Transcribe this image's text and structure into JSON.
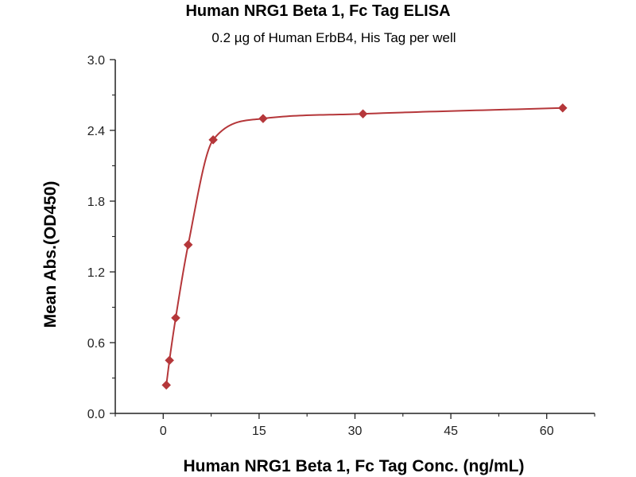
{
  "chart_data": {
    "type": "scatter",
    "title": "Human NRG1 Beta 1, Fc Tag ELISA",
    "subtitle": "0.2 µg of Human ErbB4, His Tag per well",
    "xlabel": "Human NRG1 Beta 1, Fc Tag Conc. (ng/mL)",
    "ylabel": "Mean Abs.(OD450)",
    "xlim": [
      -7.5,
      67.5
    ],
    "ylim": [
      0,
      3.0
    ],
    "x_ticks": [
      "0",
      "15",
      "30",
      "45",
      "60"
    ],
    "y_ticks": [
      "0.0",
      "0.6",
      "1.2",
      "1.8",
      "2.4",
      "3.0"
    ],
    "grid": false,
    "legend": "none",
    "series": [
      {
        "points": [
          {
            "x": 0.488,
            "y": 0.24
          },
          {
            "x": 0.977,
            "y": 0.45
          },
          {
            "x": 1.953,
            "y": 0.81
          },
          {
            "x": 3.906,
            "y": 1.43
          },
          {
            "x": 7.813,
            "y": 2.32
          },
          {
            "x": 15.625,
            "y": 2.5
          },
          {
            "x": 31.25,
            "y": 2.54
          },
          {
            "x": 62.5,
            "y": 2.59
          }
        ],
        "fit_curve": true,
        "color": "#b5373a"
      }
    ]
  }
}
